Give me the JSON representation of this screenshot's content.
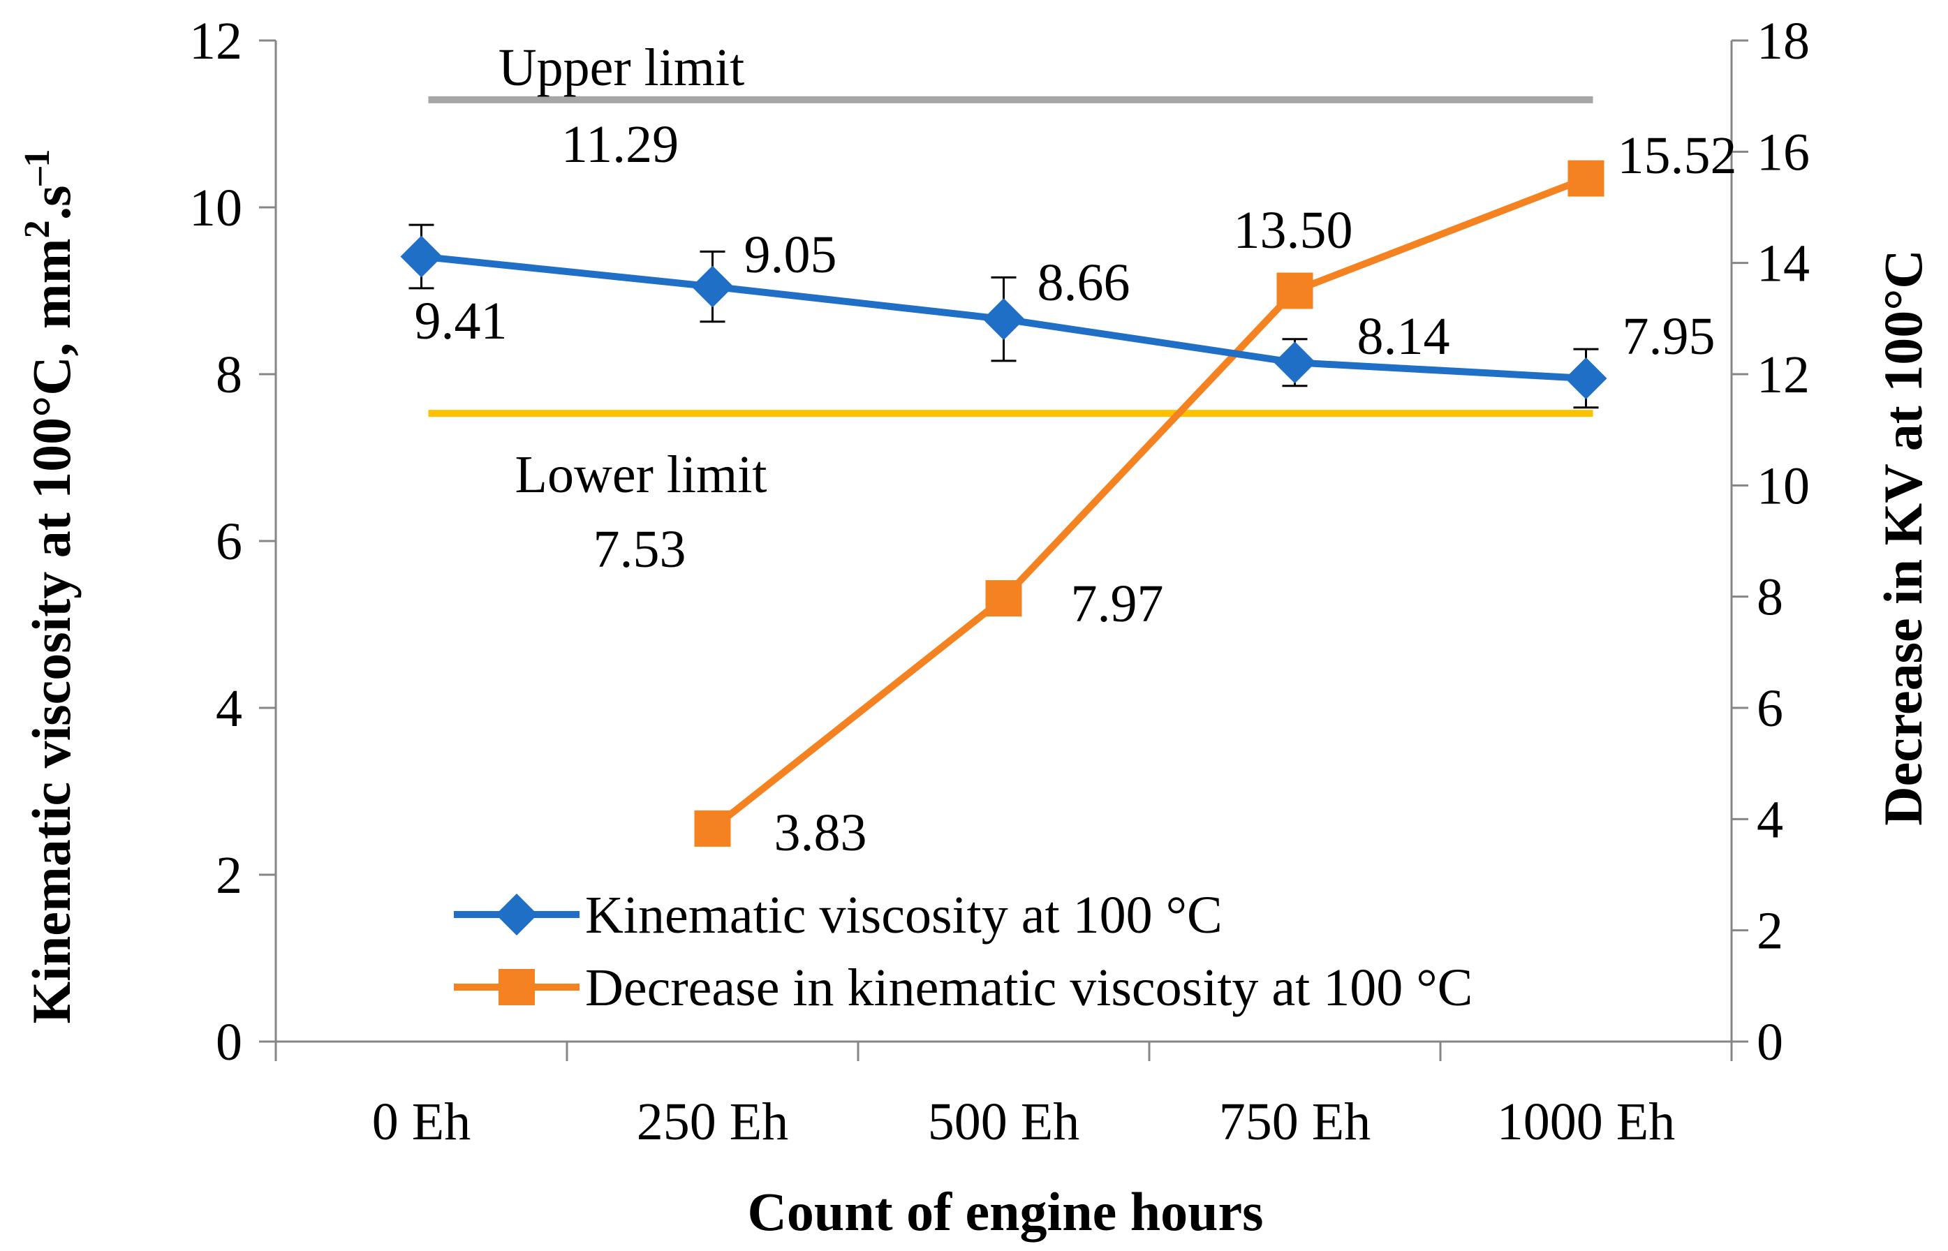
{
  "chart_data": {
    "type": "line",
    "xlabel": "Count of engine hours",
    "ylabel_prefix": "Kinematic viscosity at 100°C, mm",
    "ylabel_sup1": "2",
    "ylabel_mid": ".s",
    "ylabel_sup2": "–1",
    "y2label": "Decrease in KV at 100°C",
    "categories": [
      "0 Eh",
      "250 Eh",
      "500 Eh",
      "750 Eh",
      "1000 Eh"
    ],
    "ylim": [
      0,
      12
    ],
    "yticks": [
      "0",
      "2",
      "4",
      "6",
      "8",
      "10",
      "12"
    ],
    "y2lim": [
      0,
      18
    ],
    "y2ticks": [
      "0",
      "2",
      "4",
      "6",
      "8",
      "10",
      "12",
      "14",
      "16",
      "18"
    ],
    "series": [
      {
        "name": "Kinematic viscosity at 100 °C",
        "axis": "left",
        "color": "#1F6FC6",
        "marker": "diamond",
        "values": [
          9.41,
          9.05,
          8.66,
          8.14,
          7.95
        ],
        "errors": [
          0.38,
          0.42,
          0.5,
          0.28,
          0.35
        ],
        "labels": [
          "9.41",
          "9.05",
          "8.66",
          "8.14",
          "7.95"
        ]
      },
      {
        "name": "Decrease in kinematic viscosity at 100 °C",
        "axis": "right",
        "color": "#F58220",
        "marker": "square",
        "values": [
          null,
          3.83,
          7.97,
          13.5,
          15.52
        ],
        "labels": [
          "",
          "3.83",
          "7.97",
          "13.50",
          "15.52"
        ]
      }
    ],
    "reference_lines": [
      {
        "name": "Upper limit",
        "value": 11.29,
        "label": "Upper limit",
        "value_label": "11.29",
        "color": "#A6A6A6"
      },
      {
        "name": "Lower limit",
        "value": 7.53,
        "label": "Lower limit",
        "value_label": "7.53",
        "color": "#FFC000"
      }
    ],
    "colors": {
      "axis": "#868686",
      "text": "#000000"
    }
  }
}
